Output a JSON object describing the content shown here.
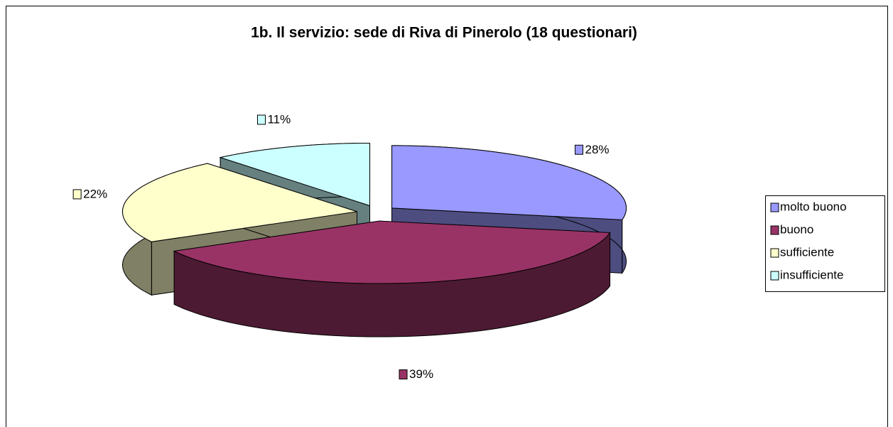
{
  "chart_data": {
    "type": "pie",
    "title": "1b. Il servizio: sede di Riva di Pinerolo (18 questionari)",
    "categories": [
      "molto buono",
      "buono",
      "sufficiente",
      "insufficiente"
    ],
    "values": [
      28,
      39,
      22,
      11
    ],
    "value_labels": [
      "28%",
      "39%",
      "22%",
      "11%"
    ],
    "colors": [
      "#9999ff",
      "#993366",
      "#ffffcc",
      "#ccffff"
    ],
    "legend": "right"
  }
}
